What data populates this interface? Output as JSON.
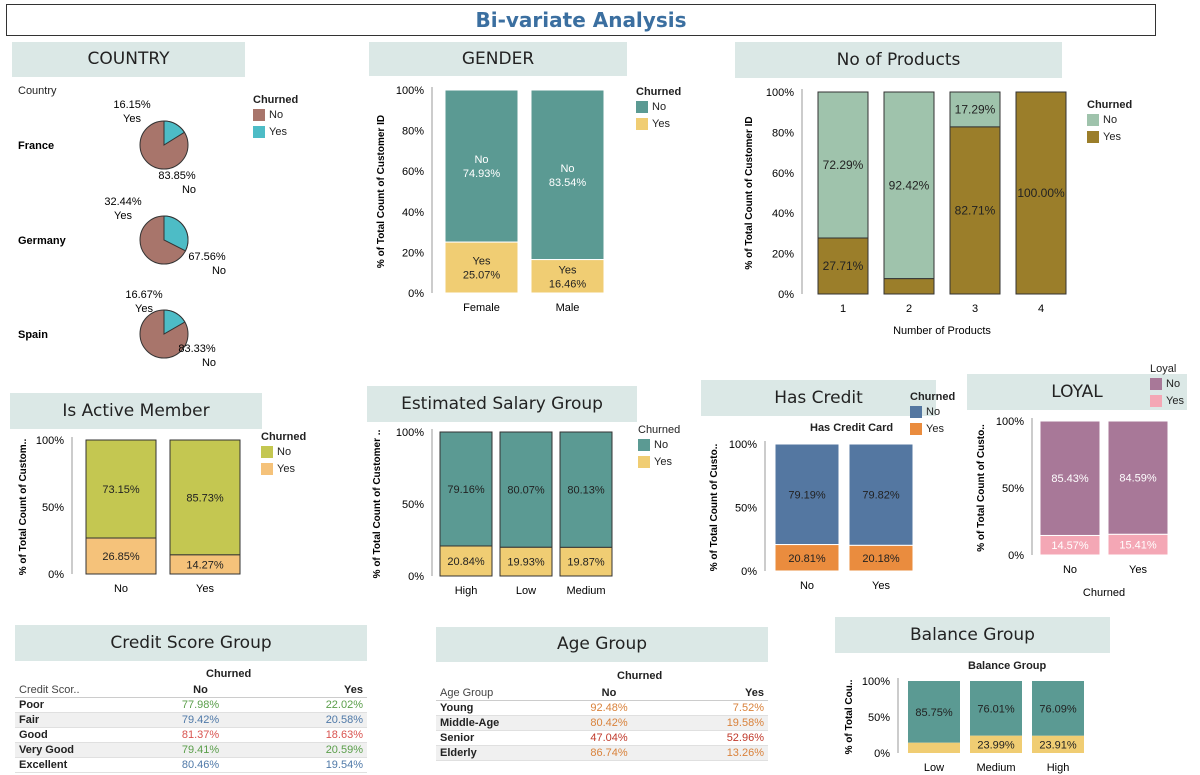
{
  "page_title": "Bi-variate Analysis",
  "colors": {
    "teal": "#5b9a93",
    "yellow": "#f0cd73",
    "brown": "#a8756b",
    "cyan": "#4dbcc6",
    "sage": "#9fc3ac",
    "olive": "#9b7e2a",
    "lime": "#c4c751",
    "orange": "#f5c27a",
    "blue": "#5477a1",
    "orange2": "#ea8c3e",
    "purple": "#a87898",
    "pink": "#f4a7b5",
    "header_bg": "#dbe8e6"
  },
  "country": {
    "header": "COUNTRY",
    "col_label": "Country",
    "legend_title": "Churned",
    "legend": [
      "No",
      "Yes"
    ],
    "rows": [
      {
        "name": "France",
        "no": "83.85%",
        "yes": "16.15%",
        "no_label": "No",
        "yes_label": "Yes"
      },
      {
        "name": "Germany",
        "no": "67.56%",
        "yes": "32.44%",
        "no_label": "No",
        "yes_label": "Yes"
      },
      {
        "name": "Spain",
        "no": "83.33%",
        "yes": "16.67%",
        "no_label": "No",
        "yes_label": "Yes"
      }
    ]
  },
  "gender": {
    "header": "GENDER",
    "ylabel": "% of Total Count of Customer ID",
    "legend_title": "Churned",
    "legend": [
      "No",
      "Yes"
    ],
    "ticks": [
      "100%",
      "80%",
      "60%",
      "40%",
      "20%",
      "0%"
    ]
  },
  "products": {
    "header": "No of Products",
    "ylabel": "% of Total Count of Customer ID",
    "xlabel": "Number of Products",
    "legend_title": "Churned",
    "legend": [
      "No",
      "Yes"
    ],
    "ticks": [
      "100%",
      "80%",
      "60%",
      "40%",
      "20%",
      "0%"
    ]
  },
  "active": {
    "header": "Is Active Member",
    "ylabel": "% of Total Count of Custom..",
    "legend_title": "Churned",
    "legend": [
      "No",
      "Yes"
    ],
    "ticks": [
      "100%",
      "50%",
      "0%"
    ]
  },
  "salary": {
    "header": "Estimated Salary Group",
    "ylabel": "% of Total Count of Customer ..",
    "legend_title": "Churned",
    "legend": [
      "No",
      "Yes"
    ],
    "ticks": [
      "100%",
      "50%",
      "0%"
    ]
  },
  "credit": {
    "header": "Has Credit",
    "subtitle": "Has Credit Card",
    "ylabel": "% of Total Count of Custo..",
    "legend_title": "Churned",
    "legend": [
      "No",
      "Yes"
    ],
    "ticks": [
      "100%",
      "50%",
      "0%"
    ]
  },
  "loyal": {
    "header": "LOYAL",
    "ylabel": "% of Total Count of Custo..",
    "xlabel": "Churned",
    "legend_title": "Loyal",
    "legend": [
      "No",
      "Yes"
    ],
    "ticks": [
      "100%",
      "50%",
      "0%"
    ]
  },
  "balance": {
    "header": "Balance Group",
    "subtitle": "Balance Group",
    "ylabel": "% of Total Cou..",
    "ticks": [
      "100%",
      "50%",
      "0%"
    ]
  },
  "credit_score": {
    "header": "Credit Score Group",
    "group_label": "Churned",
    "col0": "Credit Scor..",
    "col1": "No",
    "col2": "Yes",
    "rows": [
      {
        "name": "Poor",
        "no": "77.98%",
        "yes": "22.02%",
        "cno": "#5a9e4a",
        "cyes": "#5a9e4a"
      },
      {
        "name": "Fair",
        "no": "79.42%",
        "yes": "20.58%",
        "cno": "#4f79a8",
        "cyes": "#4f79a8"
      },
      {
        "name": "Good",
        "no": "81.37%",
        "yes": "18.63%",
        "cno": "#d9534f",
        "cyes": "#d9534f"
      },
      {
        "name": " Very Good",
        "no": "79.41%",
        "yes": "20.59%",
        "cno": "#5a9e4a",
        "cyes": "#5a9e4a"
      },
      {
        "name": "Excellent",
        "no": "80.46%",
        "yes": "19.54%",
        "cno": "#4f79a8",
        "cyes": "#4f79a8"
      }
    ]
  },
  "age": {
    "header": "Age Group",
    "group_label": "Churned",
    "col0": "Age Group",
    "col1": "No",
    "col2": "Yes",
    "rows": [
      {
        "name": "Young",
        "no": "92.48%",
        "yes": "7.52%",
        "cno": "#d9823b",
        "cyes": "#d9823b"
      },
      {
        "name": "Middle-Age",
        "no": "80.42%",
        "yes": "19.58%",
        "cno": "#d9823b",
        "cyes": "#d9823b"
      },
      {
        "name": "Senior",
        "no": "47.04%",
        "yes": "52.96%",
        "cno": "#c0392b",
        "cyes": "#c0392b"
      },
      {
        "name": "Elderly",
        "no": "86.74%",
        "yes": "13.26%",
        "cno": "#d9823b",
        "cyes": "#d9823b"
      }
    ]
  },
  "chart_data": [
    {
      "id": "country",
      "type": "pie",
      "categories": [
        "France",
        "Germany",
        "Spain"
      ],
      "series": [
        {
          "name": "No",
          "values": [
            83.85,
            67.56,
            83.33
          ]
        },
        {
          "name": "Yes",
          "values": [
            16.15,
            32.44,
            16.67
          ]
        }
      ]
    },
    {
      "id": "gender",
      "type": "bar",
      "stacked": true,
      "categories": [
        "Female",
        "Male"
      ],
      "series": [
        {
          "name": "No",
          "values": [
            74.93,
            83.54
          ],
          "labels": [
            "No\n74.93%",
            "No\n83.54%"
          ]
        },
        {
          "name": "Yes",
          "values": [
            25.07,
            16.46
          ],
          "labels": [
            "Yes\n25.07%",
            "Yes\n16.46%"
          ]
        }
      ],
      "ylim": [
        0,
        100
      ]
    },
    {
      "id": "products",
      "type": "bar",
      "stacked": true,
      "categories": [
        "1",
        "2",
        "3",
        "4"
      ],
      "series": [
        {
          "name": "No",
          "values": [
            72.29,
            92.42,
            17.29,
            0
          ],
          "labels": [
            "72.29%",
            "92.42%",
            "17.29%",
            ""
          ]
        },
        {
          "name": "Yes",
          "values": [
            27.71,
            7.58,
            82.71,
            100
          ],
          "labels": [
            "27.71%",
            "",
            "82.71%",
            "100.00%"
          ]
        }
      ],
      "ylim": [
        0,
        100
      ]
    },
    {
      "id": "active",
      "type": "bar",
      "stacked": true,
      "categories": [
        "No",
        "Yes"
      ],
      "series": [
        {
          "name": "No",
          "values": [
            73.15,
            85.73
          ],
          "labels": [
            "73.15%",
            "85.73%"
          ]
        },
        {
          "name": "Yes",
          "values": [
            26.85,
            14.27
          ],
          "labels": [
            "26.85%",
            "14.27%"
          ]
        }
      ],
      "ylim": [
        0,
        100
      ]
    },
    {
      "id": "salary",
      "type": "bar",
      "stacked": true,
      "categories": [
        "High",
        "Low",
        "Medium"
      ],
      "series": [
        {
          "name": "No",
          "values": [
            79.16,
            80.07,
            80.13
          ],
          "labels": [
            "79.16%",
            "80.07%",
            "80.13%"
          ]
        },
        {
          "name": "Yes",
          "values": [
            20.84,
            19.93,
            19.87
          ],
          "labels": [
            "20.84%",
            "19.93%",
            "19.87%"
          ]
        }
      ],
      "ylim": [
        0,
        100
      ]
    },
    {
      "id": "credit",
      "type": "bar",
      "stacked": true,
      "categories": [
        "No",
        "Yes"
      ],
      "series": [
        {
          "name": "No",
          "values": [
            79.19,
            79.82
          ],
          "labels": [
            "79.19%",
            "79.82%"
          ]
        },
        {
          "name": "Yes",
          "values": [
            20.81,
            20.18
          ],
          "labels": [
            "20.81%",
            "20.18%"
          ]
        }
      ],
      "ylim": [
        0,
        100
      ]
    },
    {
      "id": "loyal",
      "type": "bar",
      "stacked": true,
      "categories": [
        "No",
        "Yes"
      ],
      "series": [
        {
          "name": "No",
          "values": [
            85.43,
            84.59
          ],
          "labels": [
            "85.43%",
            "84.59%"
          ]
        },
        {
          "name": "Yes",
          "values": [
            14.57,
            15.41
          ],
          "labels": [
            "14.57%",
            "15.41%"
          ]
        }
      ],
      "ylim": [
        0,
        100
      ]
    },
    {
      "id": "balance",
      "type": "bar",
      "stacked": true,
      "categories": [
        "Low",
        "Medium",
        "High"
      ],
      "series": [
        {
          "values": [
            85.75,
            76.01,
            76.09
          ],
          "labels": [
            "85.75%",
            "76.01%",
            "76.09%"
          ]
        },
        {
          "values": [
            14.25,
            23.99,
            23.91
          ],
          "labels": [
            "",
            "23.99%",
            "23.91%"
          ]
        }
      ],
      "ylim": [
        0,
        100
      ]
    }
  ]
}
